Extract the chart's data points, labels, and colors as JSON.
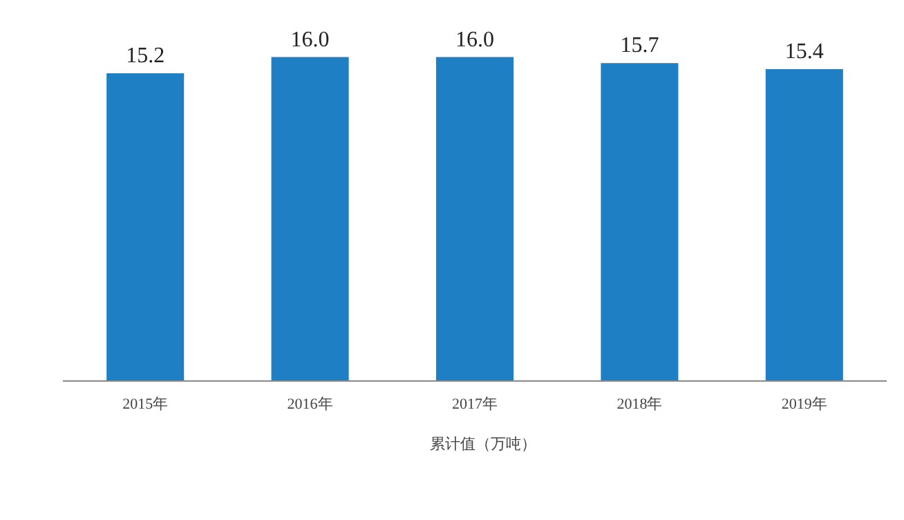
{
  "chart_data": {
    "type": "bar",
    "categories": [
      "2015年",
      "2016年",
      "2017年",
      "2018年",
      "2019年"
    ],
    "series": [
      {
        "name": "累计值（万吨）",
        "color": "#1f7fc4",
        "values": [
          15.2,
          16.0,
          16.0,
          15.7,
          15.4
        ],
        "value_labels": [
          "15.2",
          "16.0",
          "16.0",
          "15.7",
          "15.4"
        ]
      }
    ],
    "tick_labels": "x",
    "legend": "bottom"
  }
}
